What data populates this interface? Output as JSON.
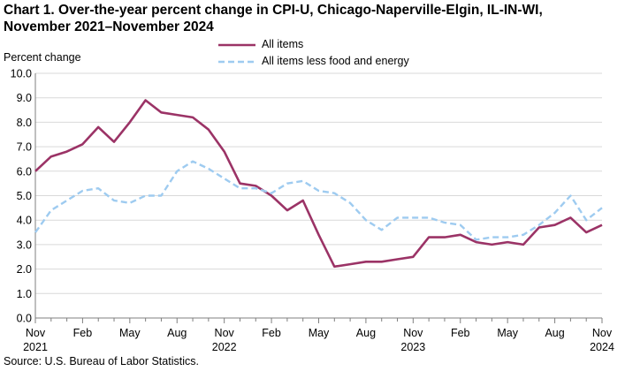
{
  "chart_data": {
    "type": "line",
    "title_line1": "Chart 1. Over-the-year percent change in CPI-U, Chicago-Naperville-Elgin,  IL-IN-WI,",
    "title_line2": "November 2021–November 2024",
    "ylabel": "Percent change",
    "xlabel": "",
    "ylim": [
      0,
      10
    ],
    "yticks": [
      "0.0",
      "1.0",
      "2.0",
      "3.0",
      "4.0",
      "5.0",
      "6.0",
      "7.0",
      "8.0",
      "9.0",
      "10.0"
    ],
    "grid": true,
    "legend_position": "top",
    "x": [
      "Nov 2021",
      "Dec 2021",
      "Jan 2022",
      "Feb 2022",
      "Mar 2022",
      "Apr 2022",
      "May 2022",
      "Jun 2022",
      "Jul 2022",
      "Aug 2022",
      "Sep 2022",
      "Oct 2022",
      "Nov 2022",
      "Dec 2022",
      "Jan 2023",
      "Feb 2023",
      "Mar 2023",
      "Apr 2023",
      "May 2023",
      "Jun 2023",
      "Jul 2023",
      "Aug 2023",
      "Sep 2023",
      "Oct 2023",
      "Nov 2023",
      "Dec 2023",
      "Jan 2024",
      "Feb 2024",
      "Mar 2024",
      "Apr 2024",
      "May 2024",
      "Jun 2024",
      "Jul 2024",
      "Aug 2024",
      "Sep 2024",
      "Oct 2024",
      "Nov 2024"
    ],
    "xtick_labels": [
      {
        "index": 0,
        "month": "Nov",
        "year": "2021"
      },
      {
        "index": 3,
        "month": "Feb",
        "year": ""
      },
      {
        "index": 6,
        "month": "May",
        "year": ""
      },
      {
        "index": 9,
        "month": "Aug",
        "year": ""
      },
      {
        "index": 12,
        "month": "Nov",
        "year": "2022"
      },
      {
        "index": 15,
        "month": "Feb",
        "year": ""
      },
      {
        "index": 18,
        "month": "May",
        "year": ""
      },
      {
        "index": 21,
        "month": "Aug",
        "year": ""
      },
      {
        "index": 24,
        "month": "Nov",
        "year": "2023"
      },
      {
        "index": 27,
        "month": "Feb",
        "year": ""
      },
      {
        "index": 30,
        "month": "May",
        "year": ""
      },
      {
        "index": 33,
        "month": "Aug",
        "year": ""
      },
      {
        "index": 36,
        "month": "Nov",
        "year": "2024"
      }
    ],
    "series": [
      {
        "name": "All items",
        "color": "#9b3366",
        "style": "solid",
        "values": [
          6.0,
          6.6,
          6.8,
          7.1,
          7.8,
          7.2,
          8.0,
          8.9,
          8.4,
          8.3,
          8.2,
          7.7,
          6.8,
          5.5,
          5.4,
          5.0,
          4.4,
          4.8,
          3.4,
          2.1,
          2.2,
          2.3,
          2.3,
          2.4,
          2.5,
          3.3,
          3.3,
          3.4,
          3.1,
          3.0,
          3.1,
          3.0,
          3.7,
          3.8,
          4.1,
          3.5,
          3.8
        ]
      },
      {
        "name": "All items less food and energy",
        "color": "#9ecbf0",
        "style": "dashed",
        "values": [
          3.5,
          4.4,
          4.8,
          5.2,
          5.3,
          4.8,
          4.7,
          5.0,
          5.0,
          6.0,
          6.4,
          6.1,
          5.7,
          5.3,
          5.3,
          5.1,
          5.5,
          5.6,
          5.2,
          5.1,
          4.7,
          4.0,
          3.6,
          4.1,
          4.1,
          4.1,
          3.9,
          3.8,
          3.2,
          3.3,
          3.3,
          3.4,
          3.8,
          4.3,
          5.0,
          4.0,
          4.5
        ]
      }
    ]
  },
  "source": "Source: U.S. Bureau of Labor Statistics."
}
